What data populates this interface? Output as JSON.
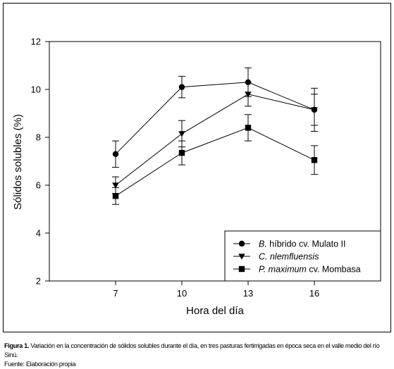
{
  "caption": {
    "label": "Figura 1.",
    "text": " Variación en la concentración de sólidos solubles durante el día, en tres pasturas fertirrigadas en época seca en el valle medio del río Sinú.",
    "source": "Fuente: Elaboración propia"
  },
  "chart_data": {
    "type": "line",
    "title": "",
    "xlabel": "Hora del día",
    "ylabel": "Sólidos solubles (%)",
    "x": [
      7,
      10,
      13,
      16
    ],
    "xticks": [
      "7",
      "10",
      "13",
      "16"
    ],
    "xlim": [
      4,
      19
    ],
    "ylim": [
      2,
      12
    ],
    "yticks": [
      "2",
      "4",
      "6",
      "8",
      "10",
      "12"
    ],
    "grid": false,
    "legend_position": "bottom-right",
    "series": [
      {
        "name_italic": "B.",
        "name_plain": " híbrido cv. Mulato II",
        "marker": "circle",
        "values": [
          7.3,
          10.1,
          10.3,
          9.15
        ],
        "error": [
          0.55,
          0.45,
          0.6,
          0.9
        ]
      },
      {
        "name_italic": "C. nlemfluensis",
        "name_plain": "",
        "marker": "triangle-down",
        "values": [
          6.0,
          8.15,
          9.8,
          9.15
        ],
        "error": [
          0.35,
          0.55,
          0.5,
          0.65
        ]
      },
      {
        "name_italic": "P. maximum",
        "name_plain": " cv. Mombasa",
        "marker": "square",
        "values": [
          5.55,
          7.35,
          8.4,
          7.05
        ],
        "error": [
          0.35,
          0.5,
          0.55,
          0.6
        ]
      }
    ],
    "colors": {
      "line": "#000000",
      "marker": "#000000"
    }
  }
}
